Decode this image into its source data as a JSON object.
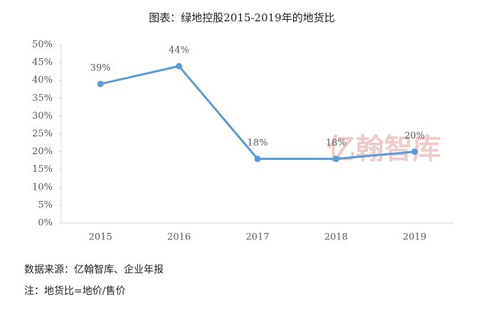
{
  "chart_data": {
    "type": "line",
    "title": "图表：绿地控股2015-2019年的地货比",
    "categories": [
      "2015",
      "2016",
      "2017",
      "2018",
      "2019"
    ],
    "series": [
      {
        "name": "地货比",
        "color": "#5b9bd5",
        "values": [
          39,
          44,
          18,
          18,
          20
        ],
        "value_labels": [
          "39%",
          "44%",
          "18%",
          "18%",
          "20%"
        ]
      }
    ],
    "ylim": [
      0,
      50
    ],
    "yticks": [
      {
        "value": 0,
        "label": "0%"
      },
      {
        "value": 5,
        "label": "5%"
      },
      {
        "value": 10,
        "label": "10%"
      },
      {
        "value": 15,
        "label": "15%"
      },
      {
        "value": 20,
        "label": "20%"
      },
      {
        "value": 25,
        "label": "25%"
      },
      {
        "value": 30,
        "label": "30%"
      },
      {
        "value": 35,
        "label": "35%"
      },
      {
        "value": 40,
        "label": "40%"
      },
      {
        "value": 45,
        "label": "45%"
      },
      {
        "value": 50,
        "label": "50%"
      }
    ],
    "grid": false,
    "watermark": "亿翰智库",
    "source": "数据来源：亿翰智库、企业年报",
    "note": "注：地货比=地价/售价"
  }
}
